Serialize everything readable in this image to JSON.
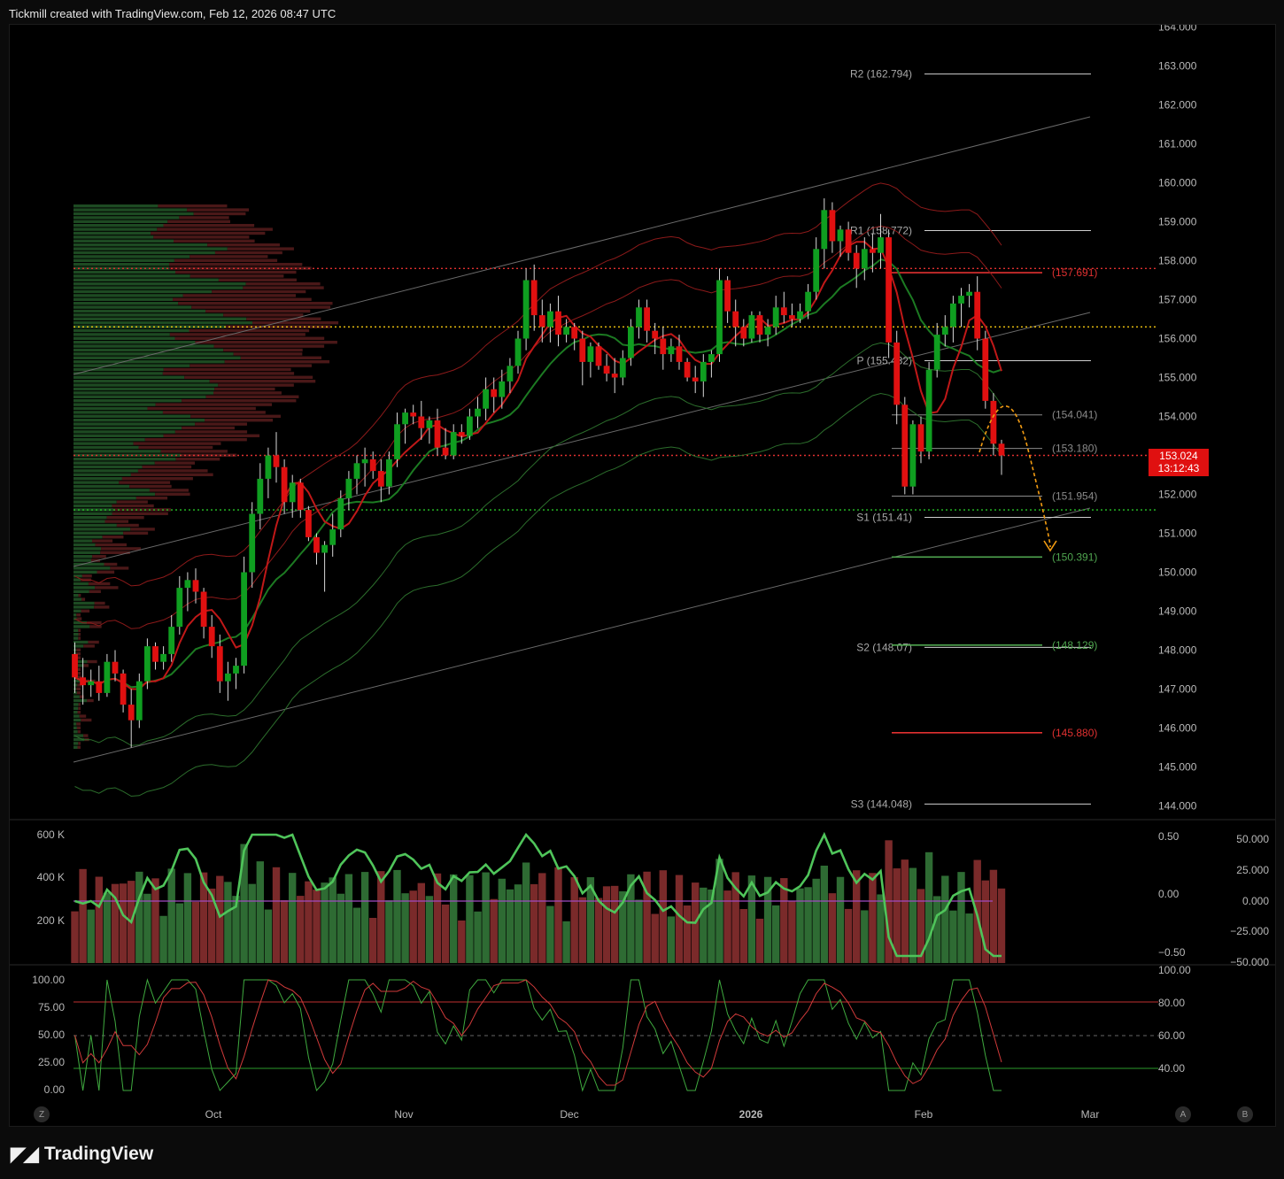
{
  "header": {
    "caption": "Tickmill created with TradingView.com, Feb 12, 2026 08:47 UTC"
  },
  "footer": {
    "brand": "TradingView"
  },
  "last_price": {
    "price": "153.024",
    "countdown": "13:12:43",
    "color": "#e01010"
  },
  "corner_buttons": {
    "left": "Z",
    "auto": "A",
    "log": "B"
  },
  "colors": {
    "bull": "#0f9e20",
    "bear": "#e01010",
    "pivot_green": "#4fa54f",
    "pivot_red": "#e03030",
    "forecast": "#f39c12"
  },
  "chart_data": [
    {
      "type": "candlestick",
      "y_ticks": [
        "164.000",
        "163.000",
        "162.000",
        "161.000",
        "160.000",
        "159.000",
        "158.000",
        "157.000",
        "156.000",
        "155.000",
        "154.000",
        "153.000",
        "152.000",
        "151.000",
        "150.000",
        "149.000",
        "148.000",
        "147.000",
        "146.000",
        "145.000",
        "144.000"
      ],
      "ylim": [
        143.8,
        164.0
      ],
      "x_ticks": [
        "Oct",
        "Nov",
        "Dec",
        "2026",
        "Feb",
        "Mar"
      ],
      "candles": [
        [
          147.9,
          148.2,
          146.9,
          147.3
        ],
        [
          147.3,
          147.8,
          146.6,
          147.1
        ],
        [
          147.1,
          147.5,
          146.8,
          147.2
        ],
        [
          147.2,
          147.6,
          146.7,
          146.9
        ],
        [
          146.9,
          147.9,
          146.8,
          147.7
        ],
        [
          147.7,
          148.0,
          147.2,
          147.4
        ],
        [
          147.4,
          147.5,
          146.4,
          146.6
        ],
        [
          146.6,
          147.0,
          145.5,
          146.2
        ],
        [
          146.2,
          147.4,
          146.0,
          147.2
        ],
        [
          147.2,
          148.3,
          147.0,
          148.1
        ],
        [
          148.1,
          148.2,
          147.5,
          147.7
        ],
        [
          147.7,
          148.1,
          147.5,
          147.9
        ],
        [
          147.9,
          148.9,
          147.7,
          148.6
        ],
        [
          148.6,
          149.9,
          148.4,
          149.6
        ],
        [
          149.6,
          150.0,
          149.0,
          149.8
        ],
        [
          149.8,
          150.1,
          149.2,
          149.5
        ],
        [
          149.5,
          149.6,
          148.3,
          148.6
        ],
        [
          148.6,
          148.9,
          147.8,
          148.1
        ],
        [
          148.1,
          148.4,
          146.9,
          147.2
        ],
        [
          147.2,
          147.7,
          146.7,
          147.4
        ],
        [
          147.4,
          147.8,
          147.0,
          147.6
        ],
        [
          147.6,
          150.4,
          147.4,
          150.0
        ],
        [
          150.0,
          151.8,
          149.6,
          151.5
        ],
        [
          151.5,
          152.8,
          151.1,
          152.4
        ],
        [
          152.4,
          153.2,
          151.9,
          153.0
        ],
        [
          153.0,
          153.6,
          152.3,
          152.7
        ],
        [
          152.7,
          152.9,
          151.5,
          151.8
        ],
        [
          151.8,
          152.5,
          151.4,
          152.3
        ],
        [
          152.3,
          152.4,
          151.4,
          151.6
        ],
        [
          151.6,
          151.7,
          150.8,
          150.9
        ],
        [
          150.9,
          151.0,
          150.2,
          150.5
        ],
        [
          150.5,
          150.8,
          149.5,
          150.7
        ],
        [
          150.7,
          151.5,
          150.4,
          151.1
        ],
        [
          151.1,
          152.1,
          150.9,
          151.9
        ],
        [
          151.9,
          152.6,
          151.6,
          152.4
        ],
        [
          152.4,
          153.0,
          152.0,
          152.8
        ],
        [
          152.8,
          153.2,
          152.2,
          152.9
        ],
        [
          152.9,
          153.1,
          152.4,
          152.6
        ],
        [
          152.6,
          152.9,
          151.8,
          152.2
        ],
        [
          152.2,
          153.1,
          152.0,
          152.9
        ],
        [
          152.9,
          154.1,
          152.7,
          153.8
        ],
        [
          153.8,
          154.2,
          153.3,
          154.1
        ],
        [
          154.1,
          154.3,
          153.8,
          154.0
        ],
        [
          154.0,
          154.4,
          153.4,
          153.7
        ],
        [
          153.7,
          154.0,
          153.3,
          153.9
        ],
        [
          153.9,
          154.2,
          153.0,
          153.2
        ],
        [
          153.2,
          153.7,
          152.9,
          153.0
        ],
        [
          153.0,
          153.8,
          152.9,
          153.6
        ],
        [
          153.6,
          153.8,
          153.3,
          153.5
        ],
        [
          153.5,
          154.2,
          153.4,
          154.0
        ],
        [
          154.0,
          154.5,
          153.7,
          154.2
        ],
        [
          154.2,
          155.0,
          153.9,
          154.7
        ],
        [
          154.7,
          155.0,
          154.1,
          154.5
        ],
        [
          154.5,
          155.2,
          154.2,
          154.9
        ],
        [
          154.9,
          155.5,
          154.6,
          155.3
        ],
        [
          155.3,
          156.2,
          155.1,
          156.0
        ],
        [
          156.0,
          157.8,
          155.7,
          157.5
        ],
        [
          157.5,
          157.9,
          156.2,
          156.6
        ],
        [
          156.6,
          157.0,
          155.9,
          156.3
        ],
        [
          156.3,
          156.9,
          155.9,
          156.7
        ],
        [
          156.7,
          157.1,
          155.8,
          156.1
        ],
        [
          156.1,
          156.5,
          155.9,
          156.3
        ],
        [
          156.3,
          156.4,
          155.7,
          156.0
        ],
        [
          156.0,
          156.2,
          154.8,
          155.4
        ],
        [
          155.4,
          155.9,
          155.0,
          155.8
        ],
        [
          155.8,
          155.9,
          155.2,
          155.3
        ],
        [
          155.3,
          155.6,
          154.9,
          155.1
        ],
        [
          155.1,
          155.5,
          154.6,
          155.0
        ],
        [
          155.0,
          155.7,
          154.8,
          155.5
        ],
        [
          155.5,
          156.5,
          155.3,
          156.3
        ],
        [
          156.3,
          157.0,
          156.0,
          156.8
        ],
        [
          156.8,
          157.0,
          155.9,
          156.2
        ],
        [
          156.2,
          156.4,
          155.6,
          156.0
        ],
        [
          156.0,
          156.3,
          155.2,
          155.6
        ],
        [
          155.6,
          156.0,
          155.4,
          155.8
        ],
        [
          155.8,
          156.1,
          155.2,
          155.4
        ],
        [
          155.4,
          155.5,
          154.9,
          155.0
        ],
        [
          155.0,
          155.3,
          154.6,
          154.9
        ],
        [
          154.9,
          155.6,
          154.5,
          155.4
        ],
        [
          155.4,
          155.7,
          155.0,
          155.6
        ],
        [
          155.6,
          157.8,
          155.4,
          157.5
        ],
        [
          157.5,
          157.6,
          156.4,
          156.7
        ],
        [
          156.7,
          157.0,
          155.8,
          156.3
        ],
        [
          156.3,
          156.5,
          155.8,
          156.0
        ],
        [
          156.0,
          156.7,
          155.9,
          156.6
        ],
        [
          156.6,
          156.7,
          155.9,
          156.1
        ],
        [
          156.1,
          156.5,
          155.8,
          156.3
        ],
        [
          156.3,
          157.1,
          156.1,
          156.8
        ],
        [
          156.8,
          157.2,
          156.4,
          156.6
        ],
        [
          156.6,
          156.9,
          156.3,
          156.5
        ],
        [
          156.5,
          156.9,
          156.4,
          156.7
        ],
        [
          156.7,
          157.4,
          156.5,
          157.2
        ],
        [
          157.2,
          158.6,
          157.0,
          158.3
        ],
        [
          158.3,
          159.6,
          157.8,
          159.3
        ],
        [
          159.3,
          159.5,
          158.2,
          158.5
        ],
        [
          158.5,
          158.9,
          158.1,
          158.8
        ],
        [
          158.8,
          159.0,
          158.0,
          158.2
        ],
        [
          158.2,
          158.4,
          157.3,
          157.8
        ],
        [
          157.8,
          158.6,
          157.5,
          158.3
        ],
        [
          158.3,
          158.7,
          157.7,
          158.2
        ],
        [
          158.2,
          159.2,
          157.8,
          158.6
        ],
        [
          158.6,
          158.8,
          155.5,
          155.9
        ],
        [
          155.9,
          156.2,
          153.8,
          154.3
        ],
        [
          154.3,
          154.5,
          152.0,
          152.2
        ],
        [
          152.2,
          153.9,
          152.0,
          153.8
        ],
        [
          153.8,
          154.0,
          152.8,
          153.1
        ],
        [
          153.1,
          155.4,
          152.9,
          155.2
        ],
        [
          155.2,
          156.4,
          155.0,
          156.1
        ],
        [
          156.1,
          156.6,
          155.8,
          156.3
        ],
        [
          156.3,
          157.1,
          155.9,
          156.9
        ],
        [
          156.9,
          157.3,
          156.3,
          157.1
        ],
        [
          157.1,
          157.4,
          156.8,
          157.2
        ],
        [
          157.2,
          157.6,
          155.7,
          156.0
        ],
        [
          156.0,
          156.2,
          154.2,
          154.4
        ],
        [
          154.4,
          154.6,
          153.0,
          153.3
        ],
        [
          153.3,
          153.4,
          152.5,
          153.0
        ]
      ],
      "pivots": [
        {
          "label": "R2 (162.794)",
          "value": 162.794
        },
        {
          "label": "R1 (158.772)",
          "value": 158.772
        },
        {
          "label": "P (155.432)",
          "value": 155.432
        },
        {
          "label": "S1 (151.41)",
          "value": 151.41
        },
        {
          "label": "S2 (148.07)",
          "value": 148.07
        },
        {
          "label": "S3 (144.048)",
          "value": 144.048
        }
      ],
      "levels": [
        {
          "label": "(157.691)",
          "value": 157.691,
          "color": "#e03030"
        },
        {
          "label": "(154.041)",
          "value": 154.041,
          "color": "#8a8a8a"
        },
        {
          "label": "(153.180)",
          "value": 153.18,
          "color": "#8a8a8a"
        },
        {
          "label": "(151.954)",
          "value": 151.954,
          "color": "#8a8a8a"
        },
        {
          "label": "(150.391)",
          "value": 150.391,
          "color": "#4fa54f"
        },
        {
          "label": "(148.129)",
          "value": 148.129,
          "color": "#4fa54f"
        },
        {
          "label": "(145.880)",
          "value": 145.88,
          "color": "#e03030"
        }
      ],
      "hlines_dotted": [
        {
          "value": 157.8,
          "color": "#e03030"
        },
        {
          "value": 156.3,
          "color": "#f1c40f"
        },
        {
          "value": 153.0,
          "color": "#e03030"
        },
        {
          "value": 151.6,
          "color": "#27c227"
        }
      ]
    },
    {
      "type": "bar",
      "left_ticks": [
        "600 K",
        "400 K",
        "200 K"
      ],
      "right_ticks_a": [
        "0.50",
        "0.00",
        "−0.50"
      ],
      "right_ticks_b": [
        "50.000",
        "25.000",
        "0.000",
        "−25.000",
        "−50.000"
      ]
    },
    {
      "type": "line",
      "left_ticks": [
        "100.00",
        "75.00",
        "50.00",
        "25.00",
        "0.00"
      ],
      "right_ticks": [
        "100.00",
        "80.00",
        "60.00",
        "40.00"
      ]
    }
  ]
}
